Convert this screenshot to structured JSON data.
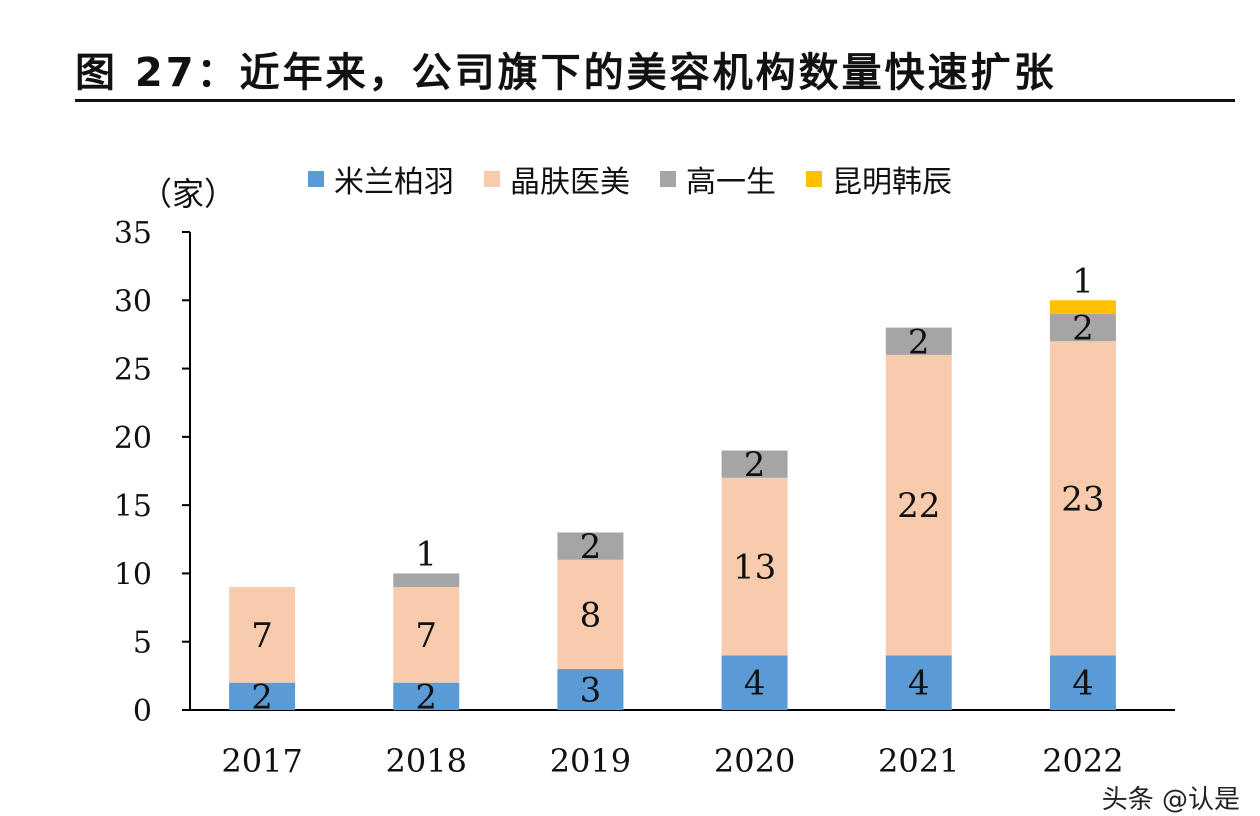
{
  "title": "图 27：近年来，公司旗下的美容机构数量快速扩张",
  "watermark": "头条 @认是",
  "chart_data": {
    "type": "bar",
    "stacked": true,
    "title": "图 27：近年来，公司旗下的美容机构数量快速扩张",
    "ylabel": "（家）",
    "xlabel": "",
    "categories": [
      "2017",
      "2018",
      "2019",
      "2020",
      "2021",
      "2022"
    ],
    "ylim": [
      0,
      35
    ],
    "yticks": [
      0,
      5,
      10,
      15,
      20,
      25,
      30,
      35
    ],
    "grid": false,
    "legend": "top",
    "series": [
      {
        "name": "米兰柏羽",
        "color": "#5B9BD5",
        "values": [
          2,
          2,
          3,
          4,
          4,
          4
        ]
      },
      {
        "name": "晶肤医美",
        "color": "#F8CBAD",
        "values": [
          7,
          7,
          8,
          13,
          22,
          23
        ]
      },
      {
        "name": "高一生",
        "color": "#A5A5A5",
        "values": [
          0,
          1,
          2,
          2,
          2,
          2
        ]
      },
      {
        "name": "昆明韩辰",
        "color": "#FFC000",
        "values": [
          0,
          0,
          0,
          0,
          0,
          1
        ]
      }
    ]
  }
}
